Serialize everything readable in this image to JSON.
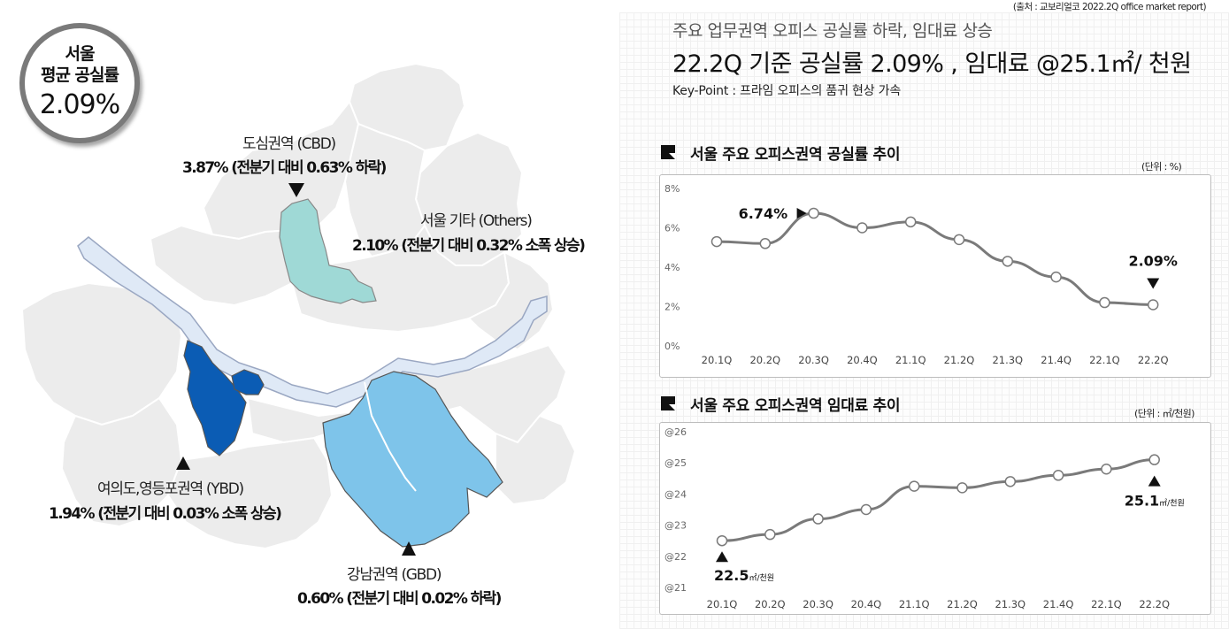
{
  "source_note": "(출처 : 교보리얼코 2022.2Q office market report)",
  "badge": {
    "line1": "서울",
    "line2": "평균 공실률",
    "value": "2.09%"
  },
  "regions": {
    "cbd": {
      "name": "도심권역 (CBD)",
      "stat": "3.87% (전분기 대비 0.63% 하락)"
    },
    "others": {
      "name": "서울 기타 (Others)",
      "stat": "2.10% (전분기 대비 0.32% 소폭 상승)"
    },
    "ybd": {
      "name": "여의도,영등포권역 (YBD)",
      "stat": "1.94% (전분기 대비 0.03% 소폭 상승)"
    },
    "gbd": {
      "name": "강남권역 (GBD)",
      "stat": "0.60% (전분기 대비 0.02% 하락)"
    }
  },
  "colors": {
    "cbd": "#9fd9d6",
    "ybd": "#0b5cb4",
    "gbd": "#7ec4ea",
    "other_districts": "#ececec",
    "river": "#dfe9f6",
    "line": "#7a7a7a"
  },
  "header": {
    "subtitle": "주요 업무권역 오피스 공실률 하락, 임대료 상승",
    "headline": "22.2Q 기준 공실률 2.09% , 임대료 @25.1㎡/ 천원",
    "keypoint": "Key-Point : 프라임 오피스의 품귀 현상 가속"
  },
  "chart_data": [
    {
      "type": "line",
      "title": "서울 주요 오피스권역 공실률 추이",
      "unit": "(단위 : %)",
      "categories": [
        "20.1Q",
        "20.2Q",
        "20.3Q",
        "20.4Q",
        "21.1Q",
        "21.2Q",
        "21.3Q",
        "21.4Q",
        "22.1Q",
        "22.2Q"
      ],
      "values": [
        5.3,
        5.2,
        6.74,
        6.0,
        6.3,
        5.4,
        4.3,
        3.5,
        2.2,
        2.09
      ],
      "y_ticks": [
        "8%",
        "6%",
        "4%",
        "2%",
        "0%"
      ],
      "ylim": [
        0,
        8
      ],
      "annotations": [
        {
          "label": "6.74%",
          "index": 2
        },
        {
          "label": "2.09%",
          "index": 9
        }
      ]
    },
    {
      "type": "line",
      "title": "서울 주요 오피스권역 임대료 추이",
      "unit": "(단위 : ㎡/천원)",
      "categories": [
        "20.1Q",
        "20.2Q",
        "20.3Q",
        "20.4Q",
        "21.1Q",
        "21.2Q",
        "21.3Q",
        "21.4Q",
        "22.1Q",
        "22.2Q"
      ],
      "values": [
        22.5,
        22.7,
        23.2,
        23.5,
        24.25,
        24.2,
        24.4,
        24.6,
        24.8,
        25.1
      ],
      "y_ticks": [
        "@26",
        "@25",
        "@24",
        "@23",
        "@22",
        "@21"
      ],
      "ylim": [
        21,
        26
      ],
      "annotations": [
        {
          "value": "22.5",
          "suffix": "㎡/천원",
          "index": 0
        },
        {
          "value": "25.1",
          "suffix": "㎡/천원",
          "index": 9
        }
      ]
    }
  ]
}
